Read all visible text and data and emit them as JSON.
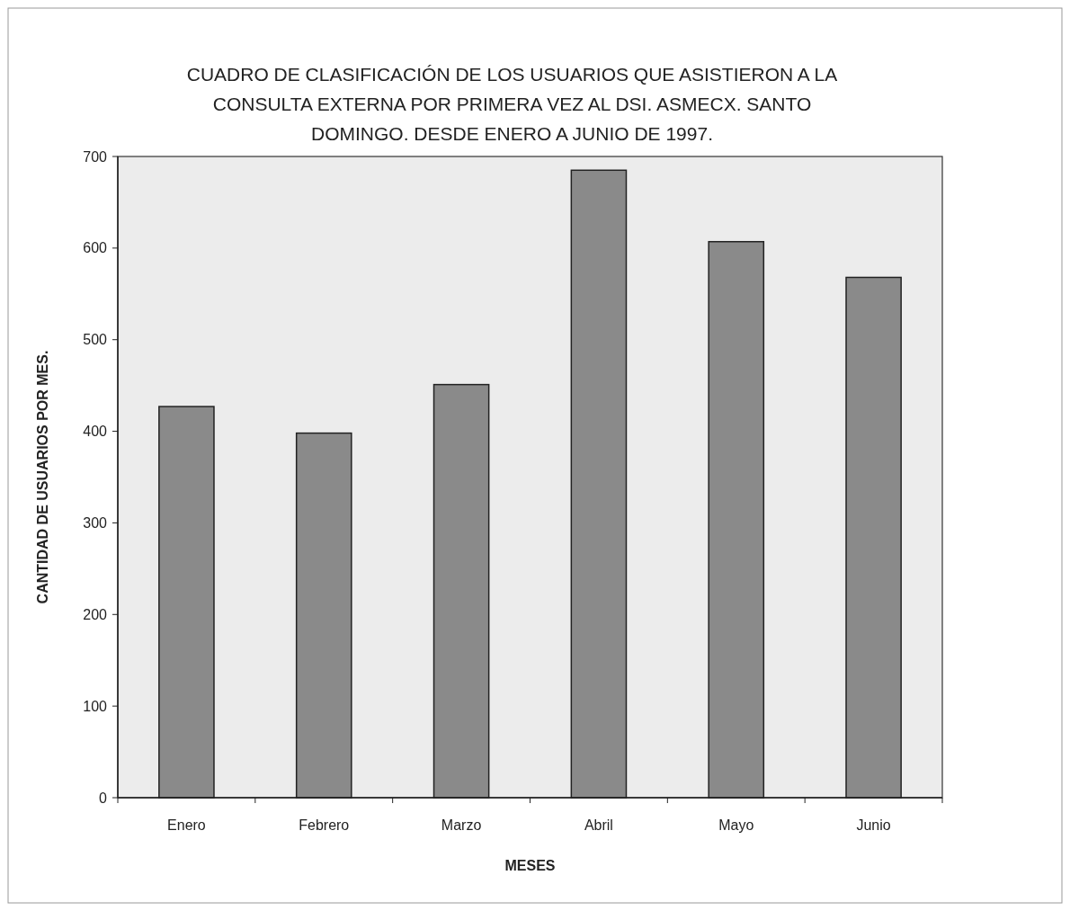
{
  "chart_data": {
    "type": "bar",
    "title": "CUADRO DE CLASIFICACIÓN DE LOS USUARIOS QUE ASISTIERON A LA CONSULTA EXTERNA POR PRIMERA VEZ AL DSI. ASMECX. SANTO DOMINGO. DESDE ENERO A JUNIO DE 1997.",
    "xlabel": "MESES",
    "ylabel": "CANTIDAD DE USUARIOS POR MES.",
    "categories": [
      "Enero",
      "Febrero",
      "Marzo",
      "Abril",
      "Mayo",
      "Junio"
    ],
    "values": [
      427,
      398,
      451,
      685,
      607,
      568
    ],
    "color": "#8a8a8a",
    "ylim": [
      0,
      700
    ],
    "yticks": [
      0,
      100,
      200,
      300,
      400,
      500,
      600,
      700
    ],
    "grid": false
  }
}
